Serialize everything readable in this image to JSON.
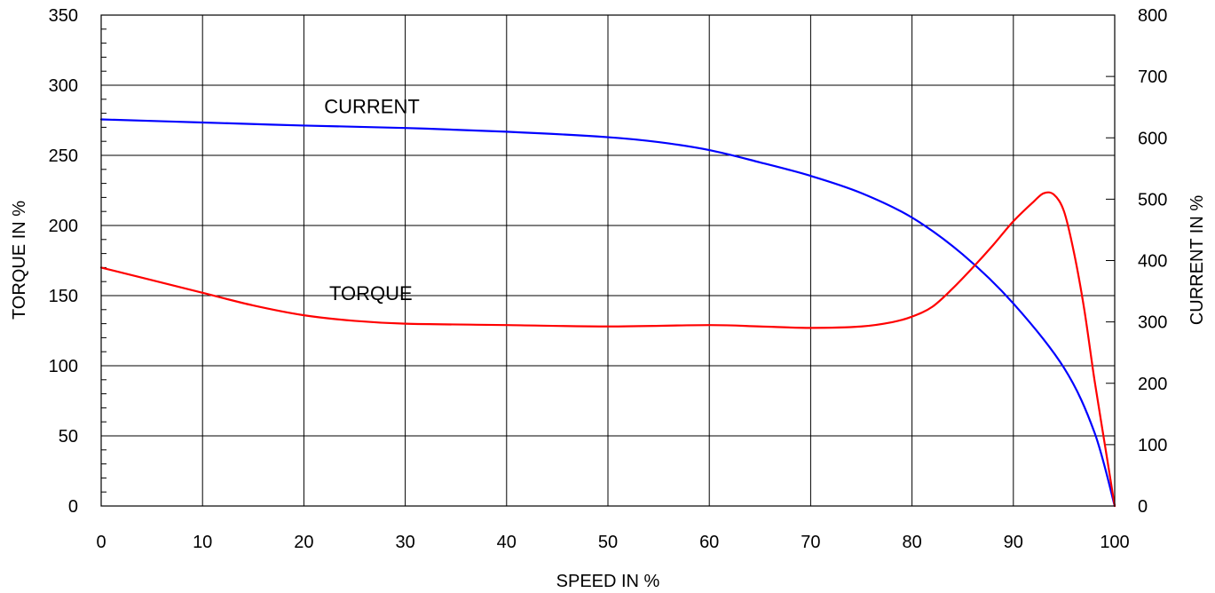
{
  "chart_data": {
    "type": "line",
    "title": "",
    "xlabel": "SPEED IN %",
    "ylabel_left": "TORQUE IN %",
    "ylabel_right": "CURRENT IN %",
    "xlim": [
      0,
      100
    ],
    "ylim_left": [
      0,
      350
    ],
    "ylim_right": [
      0,
      800
    ],
    "x_ticks": [
      0,
      10,
      20,
      30,
      40,
      50,
      60,
      70,
      80,
      90,
      100
    ],
    "y_left_ticks": [
      0,
      50,
      100,
      150,
      200,
      250,
      300,
      350
    ],
    "y_right_ticks": [
      0,
      100,
      200,
      300,
      400,
      500,
      600,
      700,
      800
    ],
    "grid": true,
    "series": [
      {
        "name": "CURRENT",
        "axis": "right",
        "color": "#0000ff",
        "x": [
          0,
          10,
          20,
          30,
          40,
          50,
          55,
          60,
          65,
          70,
          75,
          80,
          85,
          90,
          95,
          98,
          100
        ],
        "y": [
          630,
          625,
          620,
          616,
          610,
          601,
          593,
          580,
          560,
          538,
          510,
          470,
          410,
          330,
          225,
          120,
          0
        ]
      },
      {
        "name": "TORQUE",
        "axis": "left",
        "color": "#ff0000",
        "x": [
          0,
          5,
          10,
          15,
          20,
          25,
          30,
          40,
          50,
          60,
          65,
          70,
          75,
          78,
          80,
          82,
          84,
          86,
          88,
          90,
          92,
          93,
          94,
          95,
          96,
          97,
          98,
          99,
          100
        ],
        "y": [
          170,
          161,
          152,
          143,
          136,
          132,
          130,
          129,
          128,
          129,
          128,
          127,
          128,
          131,
          135,
          142,
          155,
          170,
          186,
          203,
          217,
          223,
          222,
          210,
          180,
          140,
          90,
          45,
          0
        ]
      }
    ],
    "annotations": [
      {
        "text": "CURRENT",
        "x": 22,
        "y_left": 285
      },
      {
        "text": "TORQUE",
        "x": 22.5,
        "y_left": 152
      }
    ]
  }
}
